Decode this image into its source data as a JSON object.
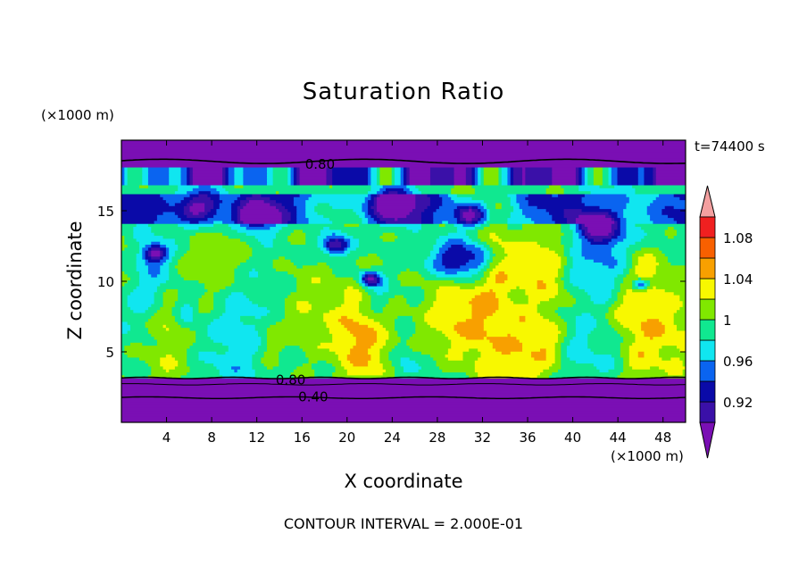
{
  "chart_data": {
    "type": "heatmap",
    "title": "Saturation Ratio",
    "xlabel": "X coordinate",
    "ylabel": "Z coordinate",
    "x_unit": "(×1000 m)",
    "y_unit": "(×1000 m)",
    "time_label": "t=74400 s",
    "footer": "CONTOUR INTERVAL = 2.000E-01",
    "xlim": [
      0,
      50
    ],
    "ylim": [
      0,
      20
    ],
    "x_ticks": [
      4,
      8,
      12,
      16,
      20,
      24,
      28,
      32,
      36,
      40,
      44,
      48
    ],
    "y_ticks": [
      5,
      10,
      15
    ],
    "colorbar": {
      "labels": [
        "0.92",
        "0.96",
        "1",
        "1.04",
        "1.08"
      ],
      "bins": [
        {
          "lo": null,
          "hi": 0.9,
          "color": "#7a0fb4"
        },
        {
          "lo": 0.9,
          "hi": 0.92,
          "color": "#3a10a8"
        },
        {
          "lo": 0.92,
          "hi": 0.94,
          "color": "#0a0aa8"
        },
        {
          "lo": 0.94,
          "hi": 0.96,
          "color": "#0a64f0"
        },
        {
          "lo": 0.96,
          "hi": 0.98,
          "color": "#10e6f0"
        },
        {
          "lo": 0.98,
          "hi": 1.0,
          "color": "#10e890"
        },
        {
          "lo": 1.0,
          "hi": 1.02,
          "color": "#80e800"
        },
        {
          "lo": 1.02,
          "hi": 1.04,
          "color": "#f8f800"
        },
        {
          "lo": 1.04,
          "hi": 1.06,
          "color": "#f8a000"
        },
        {
          "lo": 1.06,
          "hi": 1.08,
          "color": "#f86000"
        },
        {
          "lo": 1.08,
          "hi": 1.1,
          "color": "#f02020"
        },
        {
          "lo": 1.1,
          "hi": null,
          "color": "#f4a0a0"
        }
      ]
    },
    "contour_labels": [
      {
        "text": "0.80",
        "x": 17.6,
        "y": 18.3
      },
      {
        "text": "0.80",
        "x": 15.0,
        "y": 3.0
      },
      {
        "text": "0.40",
        "x": 17.0,
        "y": 1.8
      }
    ]
  }
}
